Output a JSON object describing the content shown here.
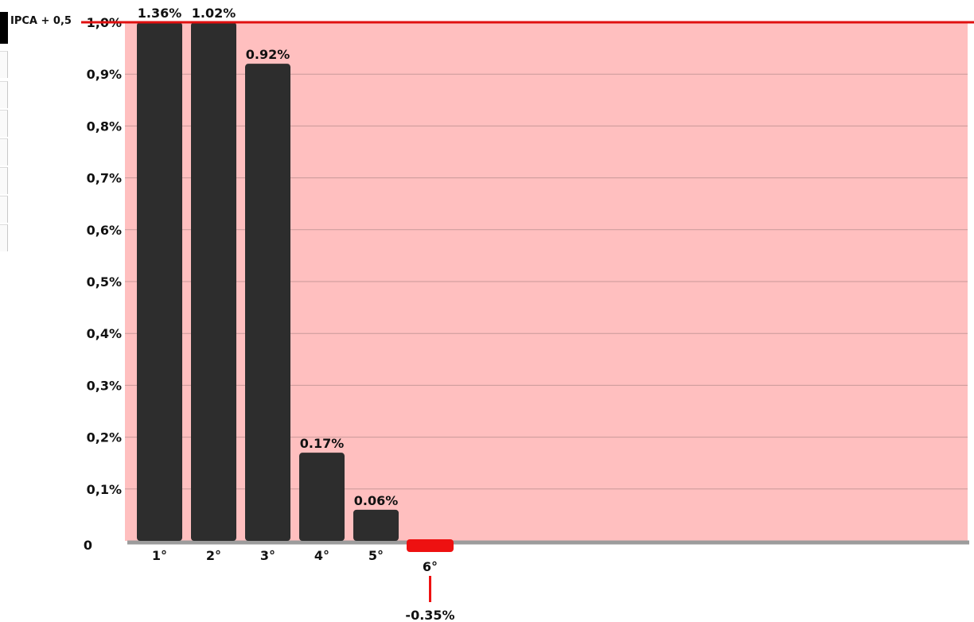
{
  "chart_data": {
    "type": "bar",
    "categories": [
      "1°",
      "2°",
      "3°",
      "4°",
      "5°",
      "6°"
    ],
    "values": [
      1.36,
      1.02,
      0.92,
      0.17,
      0.06,
      -0.35
    ],
    "value_labels": [
      "1.36%",
      "1.02%",
      "0.92%",
      "0.17%",
      "0.06%",
      "-0.35%"
    ],
    "ylim": [
      0,
      1.0
    ],
    "yticks": [
      0,
      0.1,
      0.2,
      0.3,
      0.4,
      0.5,
      0.6,
      0.7,
      0.8,
      0.9,
      1.0
    ],
    "ytick_labels": [
      "0",
      "0,1%",
      "0,2%",
      "0,3%",
      "0,4%",
      "0,5%",
      "0,6%",
      "0,7%",
      "0,8%",
      "0,9%",
      "1,0%"
    ],
    "reference_line": {
      "label": "IPCA + 0,5",
      "value": 1.0
    },
    "grid": true,
    "title": "",
    "xlabel": "",
    "ylabel": "",
    "colors": {
      "positive_bar": "#2d2d2d",
      "negative_bar": "#ee1111",
      "plot_background": "#ffbfbf",
      "reference_line": "#e01010",
      "gridline": "#c89a9a",
      "baseline": "#9c9c9c"
    }
  }
}
